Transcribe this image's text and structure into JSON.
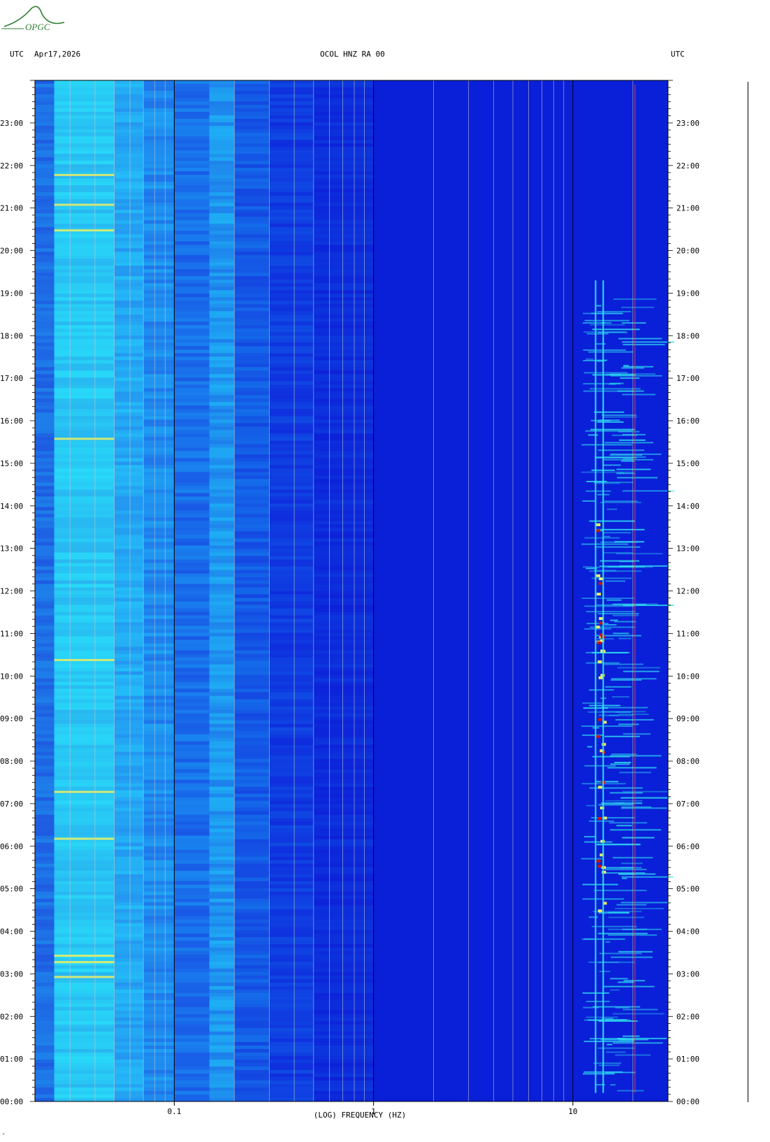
{
  "header": {
    "tz_left": "UTC",
    "date": "Apr17,2026",
    "station": "OCOL HNZ RA 00",
    "tz_right": "UTC"
  },
  "logo": {
    "text": "OPGC",
    "color": "#2e7d32"
  },
  "corner_mark": "ⁿ",
  "colors": {
    "background": "#0a1fd8",
    "low_band": "#21c8ff",
    "mid_band": "#1e88ff",
    "cyan": "#2ee0f0",
    "yellow": "#f0f060",
    "red": "#d01010",
    "gridline": "#c8c8c8",
    "decade_line": "#000000",
    "red_line": "#e04040"
  },
  "chart_data": {
    "type": "heatmap",
    "title": "OCOL HNZ RA 00",
    "xlabel": "(LOG) FREQUENCY (HZ)",
    "ylabel": "UTC",
    "x_scale": "log",
    "xlim": [
      0.02,
      30
    ],
    "x_ticks": [
      {
        "value": 0.1,
        "label": "0.1"
      },
      {
        "value": 1,
        "label": "1"
      },
      {
        "value": 10,
        "label": "10"
      }
    ],
    "ylim_hours": [
      0,
      24
    ],
    "y_ticks": [
      {
        "hour": 0,
        "label": "00:00"
      },
      {
        "hour": 1,
        "label": "01:00"
      },
      {
        "hour": 2,
        "label": "02:00"
      },
      {
        "hour": 3,
        "label": "03:00"
      },
      {
        "hour": 4,
        "label": "04:00"
      },
      {
        "hour": 5,
        "label": "05:00"
      },
      {
        "hour": 6,
        "label": "06:00"
      },
      {
        "hour": 7,
        "label": "07:00"
      },
      {
        "hour": 8,
        "label": "08:00"
      },
      {
        "hour": 9,
        "label": "09:00"
      },
      {
        "hour": 10,
        "label": "10:00"
      },
      {
        "hour": 11,
        "label": "11:00"
      },
      {
        "hour": 12,
        "label": "12:00"
      },
      {
        "hour": 13,
        "label": "13:00"
      },
      {
        "hour": 14,
        "label": "14:00"
      },
      {
        "hour": 15,
        "label": "15:00"
      },
      {
        "hour": 16,
        "label": "16:00"
      },
      {
        "hour": 17,
        "label": "17:00"
      },
      {
        "hour": 18,
        "label": "18:00"
      },
      {
        "hour": 19,
        "label": "19:00"
      },
      {
        "hour": 20,
        "label": "20:00"
      },
      {
        "hour": 21,
        "label": "21:00"
      },
      {
        "hour": 22,
        "label": "22:00"
      },
      {
        "hour": 23,
        "label": "23:00"
      }
    ],
    "frequency_gridlines_hz": [
      0.03,
      0.04,
      0.05,
      0.06,
      0.07,
      0.08,
      0.09,
      0.2,
      0.3,
      0.4,
      0.5,
      0.6,
      0.7,
      0.8,
      0.9,
      2,
      3,
      4,
      5,
      6,
      7,
      8,
      9,
      20,
      30
    ],
    "decade_lines_hz": [
      0.1,
      1,
      10
    ],
    "persistent_lines_hz": [
      13,
      14.2,
      20.5
    ],
    "energetic_band_hz": [
      11,
      25
    ],
    "energetic_band_hours": [
      0.2,
      19.0
    ]
  }
}
